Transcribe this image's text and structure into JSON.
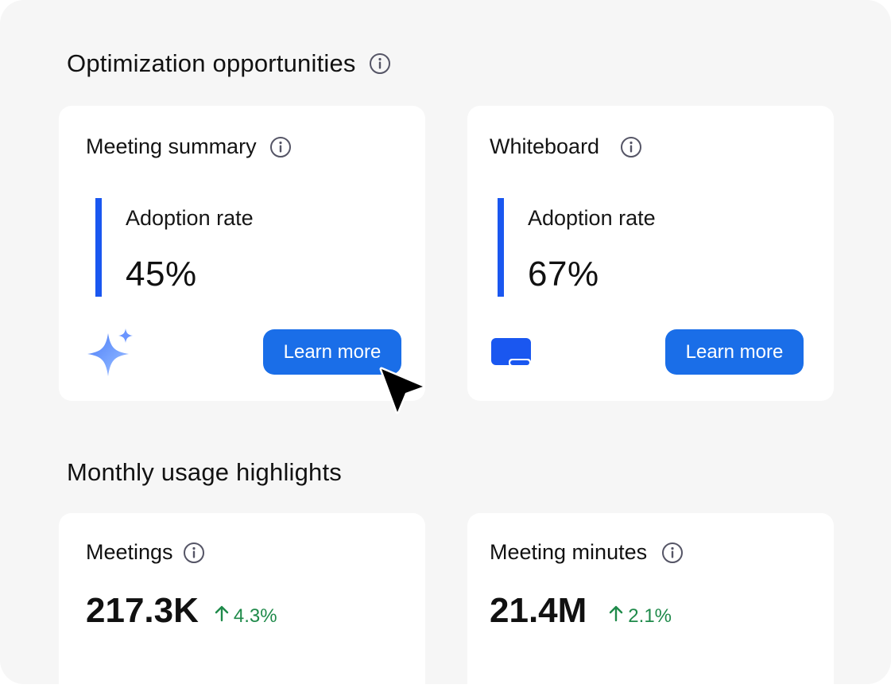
{
  "optimization": {
    "title": "Optimization opportunities",
    "cards": [
      {
        "title": "Meeting summary",
        "metric_label": "Adoption rate",
        "metric_value": "45%",
        "button_label": "Learn more",
        "icon": "sparkle-icon"
      },
      {
        "title": "Whiteboard",
        "metric_label": "Adoption rate",
        "metric_value": "67%",
        "button_label": "Learn more",
        "icon": "whiteboard-icon"
      }
    ]
  },
  "usage": {
    "title": "Monthly usage highlights",
    "cards": [
      {
        "title": "Meetings",
        "value": "217.3K",
        "delta": "4.3%",
        "trend": "up"
      },
      {
        "title": "Meeting minutes",
        "value": "21.4M",
        "delta": "2.1%",
        "trend": "up"
      }
    ]
  },
  "colors": {
    "accent": "#1a57f0",
    "button": "#1a6ee8",
    "positive": "#1f8a4a"
  }
}
